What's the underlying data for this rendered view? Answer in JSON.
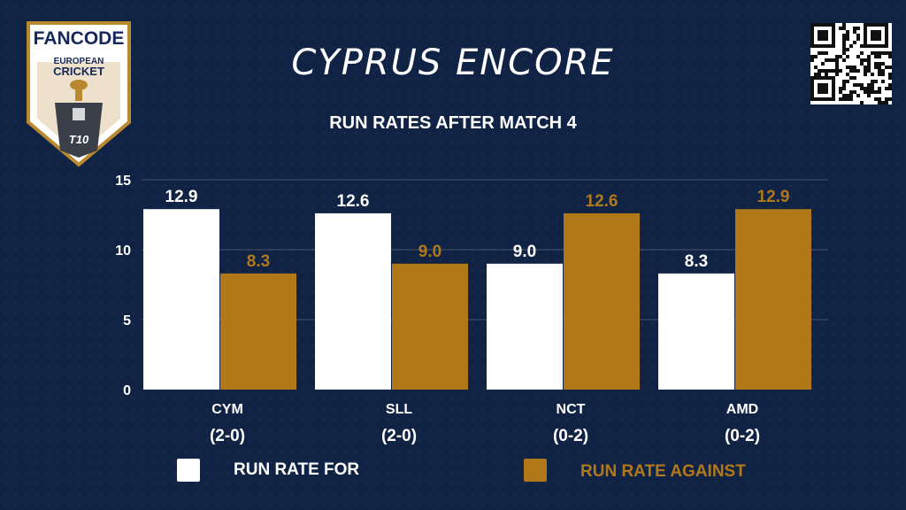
{
  "header": {
    "title": "CYPRUS ENCORE",
    "subtitle": "RUN RATES AFTER MATCH 4"
  },
  "logo": {
    "brand": "FANCODE",
    "line1": "EUROPEAN",
    "line2": "CRICKET",
    "badge": "T10"
  },
  "colors": {
    "background": "#112344",
    "for": "#ffffff",
    "against": "#B17819",
    "gold": "#B8892E"
  },
  "chart_data": {
    "type": "bar",
    "categories": [
      "CYM",
      "SLL",
      "NCT",
      "AMD"
    ],
    "category_sublabels": [
      "(2-0)",
      "(2-0)",
      "(0-2)",
      "(0-2)"
    ],
    "series": [
      {
        "name": "RUN RATE FOR",
        "values": [
          12.9,
          12.6,
          9.0,
          8.3
        ],
        "labels": [
          "12.9",
          "12.6",
          "9.0",
          "8.3"
        ],
        "color": "#ffffff"
      },
      {
        "name": "RUN RATE AGAINST",
        "values": [
          8.3,
          9.0,
          12.6,
          12.9
        ],
        "labels": [
          "8.3",
          "9.0",
          "12.6",
          "12.9"
        ],
        "color": "#B17819"
      }
    ],
    "ylim": [
      0,
      15
    ],
    "yticks": [
      "0",
      "5",
      "10",
      "15"
    ],
    "grid": true,
    "legend": "bottom"
  }
}
